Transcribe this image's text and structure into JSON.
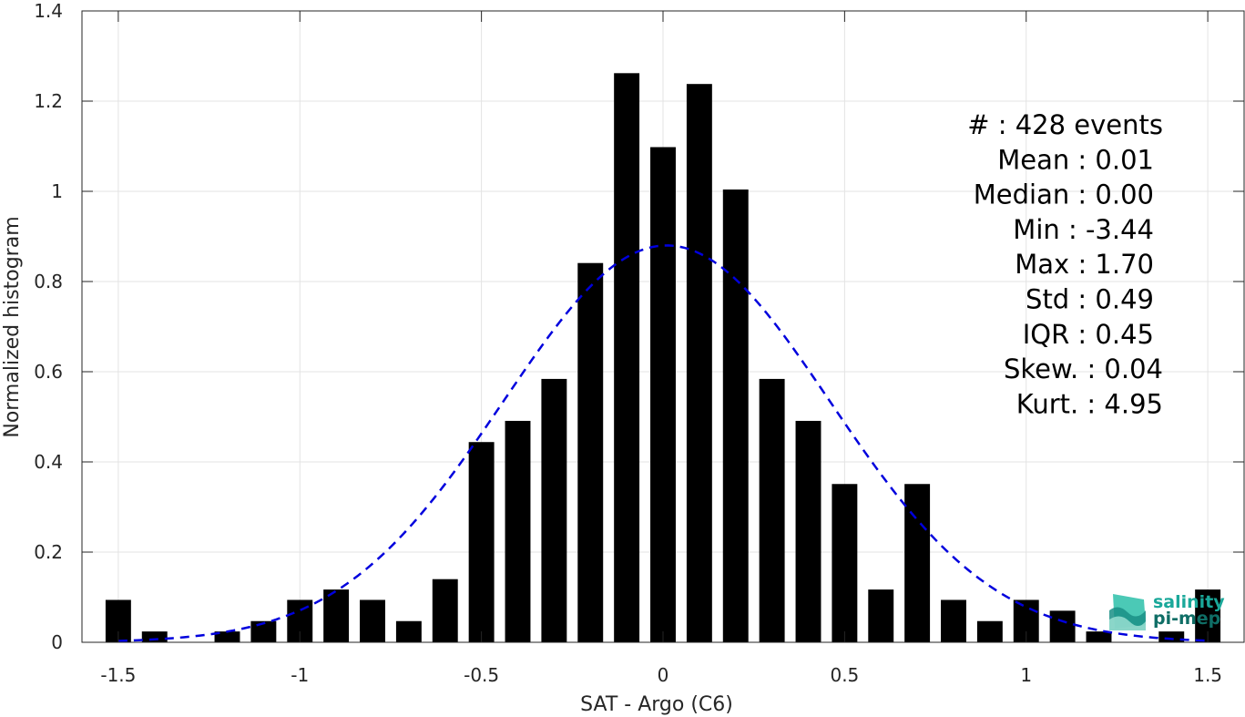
{
  "chart_data": {
    "type": "bar",
    "title": "",
    "xlabel": "SAT - Argo (C6)",
    "ylabel": "Normalized histogram",
    "xlim": [
      -1.6,
      1.6
    ],
    "ylim": [
      0,
      1.4
    ],
    "grid": true,
    "bar_width": 0.07,
    "xticks": [
      -1.5,
      -1,
      -0.5,
      0,
      0.5,
      1,
      1.5
    ],
    "xtick_labels": [
      "-1.5",
      "-1",
      "-0.5",
      "0",
      "0.5",
      "1",
      "1.5"
    ],
    "yticks": [
      0,
      0.2,
      0.4,
      0.6,
      0.8,
      1,
      1.2,
      1.4
    ],
    "ytick_labels": [
      "0",
      "0.2",
      "0.4",
      "0.6",
      "0.8",
      "1",
      "1.2",
      "1.4"
    ],
    "bars": {
      "x": [
        -1.5,
        -1.4,
        -1.2,
        -1.1,
        -1.0,
        -0.9,
        -0.8,
        -0.7,
        -0.6,
        -0.5,
        -0.4,
        -0.3,
        -0.2,
        -0.1,
        0.0,
        0.1,
        0.2,
        0.3,
        0.4,
        0.5,
        0.6,
        0.7,
        0.8,
        0.9,
        1.0,
        1.1,
        1.2,
        1.4,
        1.5
      ],
      "values": [
        0.094,
        0.024,
        0.024,
        0.047,
        0.094,
        0.117,
        0.094,
        0.047,
        0.14,
        0.444,
        0.491,
        0.584,
        0.841,
        1.262,
        1.098,
        1.238,
        1.004,
        0.584,
        0.491,
        0.351,
        0.117,
        0.351,
        0.094,
        0.047,
        0.094,
        0.07,
        0.024,
        0.024,
        0.117
      ],
      "color": "#000000"
    },
    "fit_curve": {
      "type": "gaussian",
      "mean": 0.01,
      "std": 0.45,
      "peak": 0.88,
      "x_range": [
        -1.5,
        1.5
      ],
      "color": "#0000dd",
      "style": "dashed"
    }
  },
  "stats": [
    {
      "label": "#  : 428 events",
      "anchor": "end",
      "x_offset": 10
    },
    {
      "label": "Mean : 0.01",
      "anchor": "end",
      "x_offset": 0
    },
    {
      "label": "Median : 0.00",
      "anchor": "end",
      "x_offset": 0
    },
    {
      "label": "Min : -3.44",
      "anchor": "end",
      "x_offset": 0
    },
    {
      "label": "Max : 1.70",
      "anchor": "end",
      "x_offset": 0
    },
    {
      "label": "Std : 0.49",
      "anchor": "end",
      "x_offset": 0
    },
    {
      "label": "IQR : 0.45",
      "anchor": "end",
      "x_offset": 0
    },
    {
      "label": "Skew. : 0.04",
      "anchor": "end",
      "x_offset": 10
    },
    {
      "label": "Kurt. : 4.95",
      "anchor": "end",
      "x_offset": 10
    }
  ],
  "logo": {
    "line1": "salinity",
    "line2": "pi-mep",
    "color": "#1aa89a",
    "color_dark": "#0f6e66"
  }
}
